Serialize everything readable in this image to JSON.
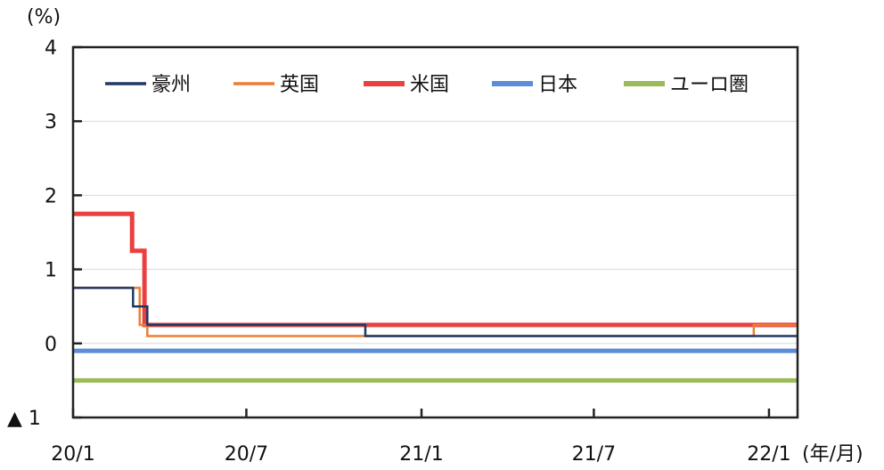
{
  "chart_data": {
    "type": "line",
    "title": "",
    "unit_label": "(%)",
    "xlabel_suffix": "(年/月)",
    "xlim": [
      "2020-01-01",
      "2022-01-31"
    ],
    "ylim": [
      -1,
      4
    ],
    "grid": true,
    "legend_placement": "top",
    "y_ticks": [
      {
        "value": 4,
        "label": "4"
      },
      {
        "value": 3,
        "label": "3"
      },
      {
        "value": 2,
        "label": "2"
      },
      {
        "value": 1,
        "label": "1"
      },
      {
        "value": 0,
        "label": "0"
      },
      {
        "value": -1,
        "label": "▲ 1"
      }
    ],
    "x_ticks": [
      {
        "date": "2020-01-01",
        "label": "20/1"
      },
      {
        "date": "2020-07-01",
        "label": "20/7"
      },
      {
        "date": "2021-01-01",
        "label": "21/1"
      },
      {
        "date": "2021-07-01",
        "label": "21/7"
      },
      {
        "date": "2022-01-01",
        "label": "22/1"
      }
    ],
    "series": [
      {
        "name": "豪州",
        "color": "#203864",
        "steps": [
          [
            "2020-01-01",
            0.75
          ],
          [
            "2020-03-04",
            0.5
          ],
          [
            "2020-03-19",
            0.25
          ],
          [
            "2020-11-03",
            0.1
          ],
          [
            "2022-01-31",
            0.1
          ]
        ]
      },
      {
        "name": "英国",
        "color": "#ed7d31",
        "steps": [
          [
            "2020-01-01",
            0.75
          ],
          [
            "2020-03-11",
            0.25
          ],
          [
            "2020-03-19",
            0.1
          ],
          [
            "2021-12-16",
            0.25
          ],
          [
            "2022-01-31",
            0.25
          ]
        ]
      },
      {
        "name": "米国",
        "color": "#e94040",
        "steps": [
          [
            "2020-01-01",
            1.75
          ],
          [
            "2020-03-03",
            1.25
          ],
          [
            "2020-03-16",
            0.25
          ],
          [
            "2022-01-31",
            0.25
          ]
        ]
      },
      {
        "name": "日本",
        "color": "#5b8ed6",
        "steps": [
          [
            "2020-01-01",
            -0.1
          ],
          [
            "2022-01-31",
            -0.1
          ]
        ]
      },
      {
        "name": "ユーロ圏",
        "color": "#9bbb59",
        "steps": [
          [
            "2020-01-01",
            -0.5
          ],
          [
            "2022-01-31",
            -0.5
          ]
        ]
      }
    ]
  }
}
